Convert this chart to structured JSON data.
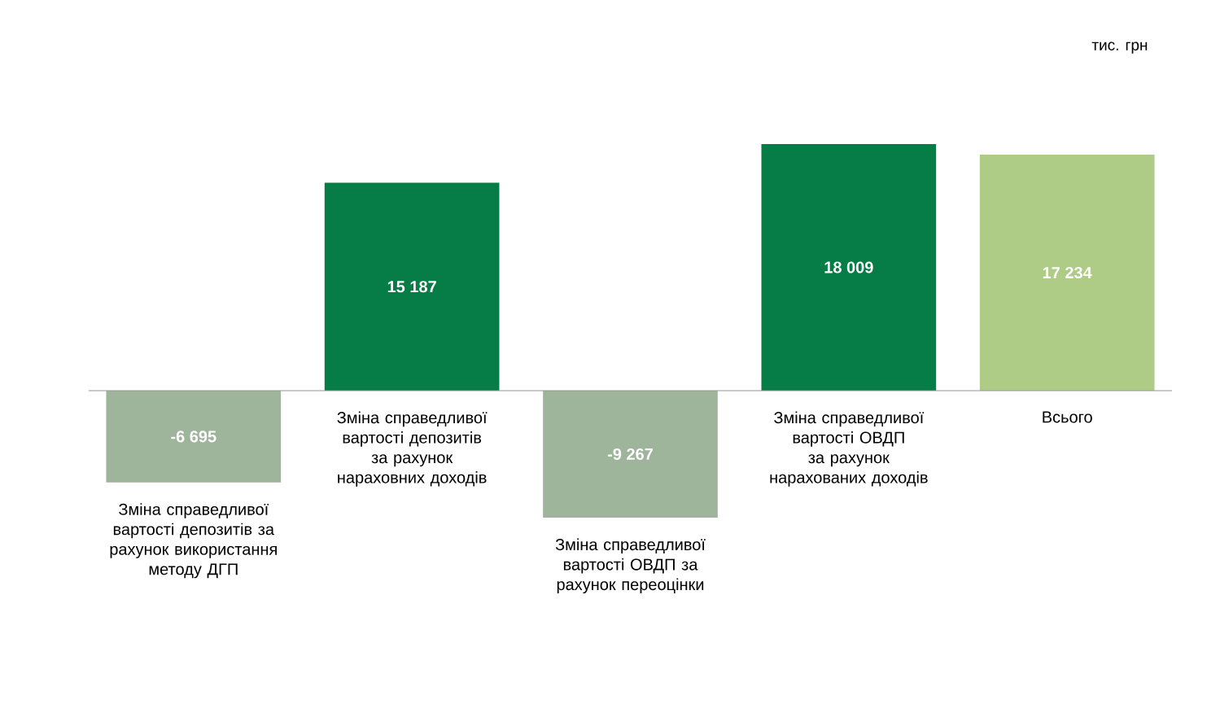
{
  "chart_data": {
    "type": "bar",
    "categories": [
      "Зміна справедливої вартості депозитів за рахунок використання методу ДГП",
      "Зміна справедливої вартості депозитів за рахунок нараховних доходів",
      "Зміна справедливої вартості ОВДП за рахунок переоцінки",
      "Зміна справедливої вартості ОВДП за рахунок нарахованих доходів",
      "Всього"
    ],
    "values": [
      -6695,
      15187,
      -9267,
      18009,
      17234
    ],
    "colors": [
      "#9fb59b",
      "#067d46",
      "#9fb59b",
      "#067d46",
      "#aecc86"
    ],
    "value_labels": [
      "-6 695",
      "15 187",
      "-9 267",
      "18 009",
      "17 234"
    ],
    "annotations": [
      "тис. грн"
    ]
  }
}
